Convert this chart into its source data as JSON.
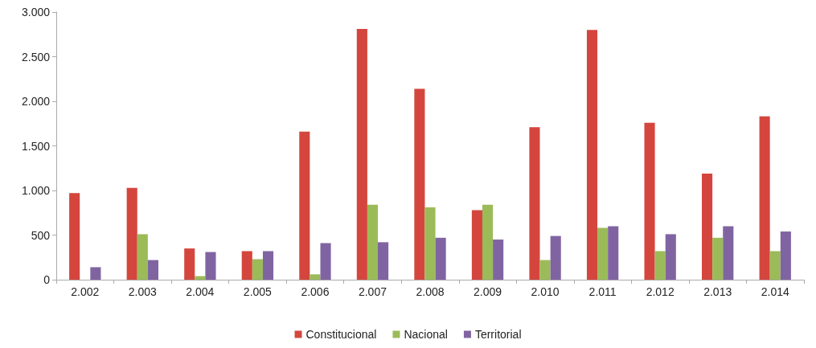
{
  "chart_data": {
    "type": "bar",
    "categories": [
      "2.002",
      "2.003",
      "2.004",
      "2.005",
      "2.006",
      "2.007",
      "2.008",
      "2.009",
      "2.010",
      "2.011",
      "2.012",
      "2.013",
      "2.014"
    ],
    "series": [
      {
        "name": "Constitucional",
        "color": "#d4463d",
        "values": [
          970,
          1030,
          350,
          320,
          1660,
          2810,
          2140,
          780,
          1710,
          2800,
          1760,
          1190,
          1830
        ]
      },
      {
        "name": "Nacional",
        "color": "#9bbb59",
        "values": [
          null,
          510,
          40,
          230,
          60,
          840,
          810,
          840,
          220,
          580,
          320,
          470,
          320
        ]
      },
      {
        "name": "Territorial",
        "color": "#8064a2",
        "values": [
          140,
          220,
          310,
          320,
          410,
          420,
          470,
          450,
          490,
          600,
          510,
          600,
          540
        ]
      }
    ],
    "ylim": [
      0,
      3000
    ],
    "yticks": [
      0,
      {
        "value": 500,
        "label": "500"
      },
      {
        "value": 1000,
        "label": "1.000"
      },
      {
        "value": 1500,
        "label": "1.500"
      },
      {
        "value": 2000,
        "label": "2.000"
      },
      {
        "value": 2500,
        "label": "2.500"
      },
      {
        "value": 3000,
        "label": "3.000"
      }
    ],
    "grid": false,
    "legend": "bottom"
  }
}
